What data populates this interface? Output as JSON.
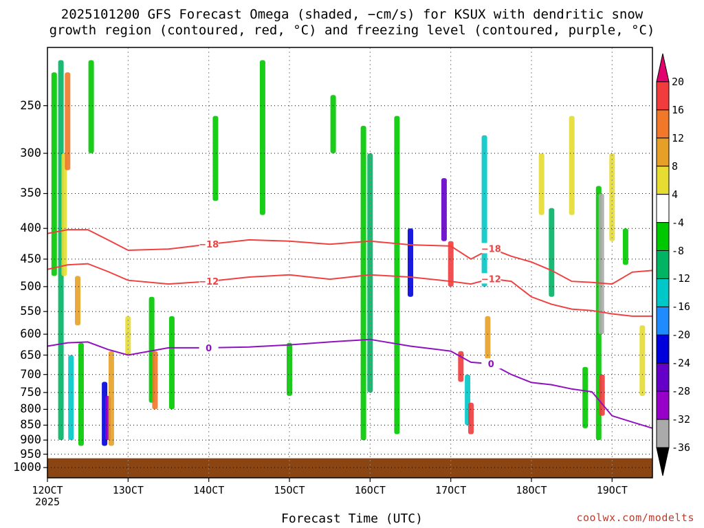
{
  "title": {
    "line1": "2025101200 GFS Forecast Omega (shaded, −cm/s) for KSUX with dendritic snow",
    "line2": "growth region (contoured, red, °C) and freezing level (contoured, purple, °C)"
  },
  "credit": "coolwx.com/modelts",
  "chart_data": {
    "type": "heatmap",
    "xlabel": "Forecast Time (UTC)",
    "ylabel": "",
    "x_ticks": [
      "12OCT",
      "13OCT",
      "14OCT",
      "15OCT",
      "16OCT",
      "17OCT",
      "18OCT",
      "19OCT"
    ],
    "x_tick_year": "2025",
    "x_range_hours": [
      0,
      180
    ],
    "y_ticks": [
      250,
      300,
      350,
      400,
      450,
      500,
      550,
      600,
      650,
      700,
      750,
      800,
      850,
      900,
      950,
      1000
    ],
    "y_range_hPa": [
      200,
      1040
    ],
    "y_scale": "log (pressure)",
    "grid": true,
    "colorbar": {
      "levels": [
        20,
        16,
        12,
        8,
        4,
        -4,
        -8,
        -12,
        -16,
        -20,
        -24,
        -28,
        -32,
        -36
      ],
      "colors": [
        "#e0006e",
        "#f03c3c",
        "#f07828",
        "#e6a028",
        "#e6dc32",
        "#ffffff",
        "#00c800",
        "#00b464",
        "#00c8c8",
        "#1e8cff",
        "#0000dc",
        "#6400c8",
        "#9600c8",
        "#aaaaaa",
        "#000000"
      ]
    },
    "ground_color": "#8b4513",
    "contours": [
      {
        "name": "-18",
        "color": "#f04040",
        "label": "−18",
        "points": [
          [
            0,
            408
          ],
          [
            6,
            402
          ],
          [
            12,
            402
          ],
          [
            18,
            418
          ],
          [
            24,
            435
          ],
          [
            36,
            433
          ],
          [
            48,
            425
          ],
          [
            60,
            418
          ],
          [
            72,
            420
          ],
          [
            84,
            425
          ],
          [
            96,
            420
          ],
          [
            108,
            426
          ],
          [
            120,
            428
          ],
          [
            126,
            450
          ],
          [
            132,
            432
          ],
          [
            138,
            445
          ],
          [
            144,
            455
          ],
          [
            150,
            470
          ],
          [
            156,
            490
          ],
          [
            162,
            492
          ],
          [
            168,
            495
          ],
          [
            174,
            473
          ],
          [
            180,
            470
          ]
        ]
      },
      {
        "name": "-12",
        "color": "#f04040",
        "label": "−12",
        "points": [
          [
            0,
            468
          ],
          [
            6,
            460
          ],
          [
            12,
            458
          ],
          [
            18,
            472
          ],
          [
            24,
            488
          ],
          [
            36,
            495
          ],
          [
            48,
            490
          ],
          [
            60,
            482
          ],
          [
            72,
            478
          ],
          [
            84,
            486
          ],
          [
            96,
            478
          ],
          [
            108,
            482
          ],
          [
            120,
            490
          ],
          [
            126,
            495
          ],
          [
            132,
            485
          ],
          [
            138,
            490
          ],
          [
            144,
            520
          ],
          [
            150,
            535
          ],
          [
            156,
            545
          ],
          [
            162,
            548
          ],
          [
            168,
            555
          ],
          [
            174,
            560
          ],
          [
            180,
            560
          ]
        ]
      },
      {
        "name": "0",
        "color": "#9010c0",
        "label": "0",
        "points": [
          [
            0,
            628
          ],
          [
            6,
            620
          ],
          [
            12,
            618
          ],
          [
            18,
            636
          ],
          [
            24,
            650
          ],
          [
            36,
            632
          ],
          [
            48,
            632
          ],
          [
            60,
            630
          ],
          [
            72,
            625
          ],
          [
            84,
            618
          ],
          [
            96,
            612
          ],
          [
            108,
            628
          ],
          [
            120,
            640
          ],
          [
            126,
            668
          ],
          [
            132,
            672
          ],
          [
            138,
            700
          ],
          [
            144,
            722
          ],
          [
            150,
            728
          ],
          [
            156,
            740
          ],
          [
            162,
            748
          ],
          [
            168,
            820
          ],
          [
            174,
            840
          ],
          [
            180,
            860
          ]
        ]
      }
    ],
    "omega_cells": [
      {
        "t": 2,
        "p0": 220,
        "p1": 480,
        "v": -8
      },
      {
        "t": 4,
        "p0": 210,
        "p1": 900,
        "v": -12
      },
      {
        "t": 5,
        "p0": 300,
        "p1": 480,
        "v": 4
      },
      {
        "t": 6,
        "p0": 220,
        "p1": 320,
        "v": 12
      },
      {
        "t": 7,
        "p0": 650,
        "p1": 900,
        "v": -16
      },
      {
        "t": 9,
        "p0": 480,
        "p1": 580,
        "v": 8
      },
      {
        "t": 10,
        "p0": 620,
        "p1": 920,
        "v": -8
      },
      {
        "t": 13,
        "p0": 210,
        "p1": 300,
        "v": -8
      },
      {
        "t": 17,
        "p0": 720,
        "p1": 920,
        "v": -24
      },
      {
        "t": 18,
        "p0": 760,
        "p1": 900,
        "v": -32
      },
      {
        "t": 19,
        "p0": 640,
        "p1": 920,
        "v": 8
      },
      {
        "t": 24,
        "p0": 560,
        "p1": 650,
        "v": 4
      },
      {
        "t": 31,
        "p0": 520,
        "p1": 780,
        "v": -8
      },
      {
        "t": 32,
        "p0": 640,
        "p1": 800,
        "v": 12
      },
      {
        "t": 37,
        "p0": 560,
        "p1": 800,
        "v": -8
      },
      {
        "t": 50,
        "p0": 260,
        "p1": 360,
        "v": -8
      },
      {
        "t": 64,
        "p0": 210,
        "p1": 380,
        "v": -8
      },
      {
        "t": 72,
        "p0": 620,
        "p1": 760,
        "v": -8
      },
      {
        "t": 85,
        "p0": 240,
        "p1": 300,
        "v": -8
      },
      {
        "t": 94,
        "p0": 270,
        "p1": 900,
        "v": -8
      },
      {
        "t": 96,
        "p0": 300,
        "p1": 750,
        "v": -12
      },
      {
        "t": 104,
        "p0": 260,
        "p1": 880,
        "v": -8
      },
      {
        "t": 108,
        "p0": 400,
        "p1": 520,
        "v": -24
      },
      {
        "t": 118,
        "p0": 330,
        "p1": 420,
        "v": -28
      },
      {
        "t": 120,
        "p0": 420,
        "p1": 500,
        "v": 16
      },
      {
        "t": 123,
        "p0": 640,
        "p1": 720,
        "v": 16
      },
      {
        "t": 125,
        "p0": 700,
        "p1": 850,
        "v": -16
      },
      {
        "t": 126,
        "p0": 780,
        "p1": 880,
        "v": 16
      },
      {
        "t": 130,
        "p0": 280,
        "p1": 500,
        "v": -16
      },
      {
        "t": 131,
        "p0": 560,
        "p1": 660,
        "v": 8
      },
      {
        "t": 147,
        "p0": 300,
        "p1": 380,
        "v": 4
      },
      {
        "t": 150,
        "p0": 370,
        "p1": 520,
        "v": -12
      },
      {
        "t": 156,
        "p0": 260,
        "p1": 380,
        "v": 4
      },
      {
        "t": 160,
        "p0": 680,
        "p1": 860,
        "v": -8
      },
      {
        "t": 164,
        "p0": 340,
        "p1": 900,
        "v": -8
      },
      {
        "t": 164.8,
        "p0": 350,
        "p1": 600,
        "v": -36
      },
      {
        "t": 165,
        "p0": 700,
        "p1": 820,
        "v": 16
      },
      {
        "t": 168,
        "p0": 300,
        "p1": 420,
        "v": 4
      },
      {
        "t": 172,
        "p0": 400,
        "p1": 460,
        "v": -8
      },
      {
        "t": 177,
        "p0": 580,
        "p1": 760,
        "v": 4
      }
    ]
  }
}
